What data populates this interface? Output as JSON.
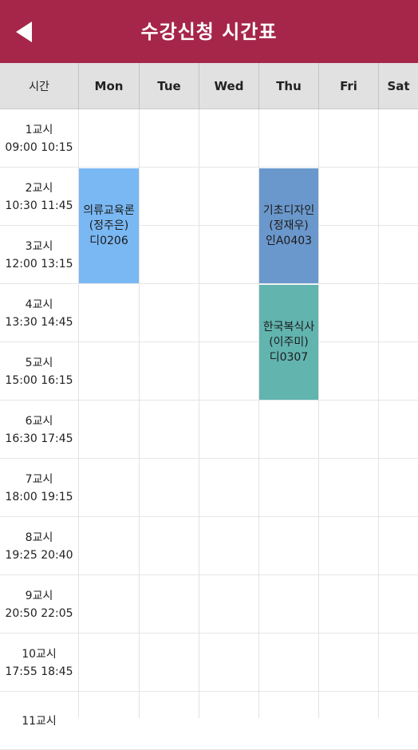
{
  "header": {
    "title": "수강신청 시간표",
    "time_col": "시간",
    "days": [
      "Mon",
      "Tue",
      "Wed",
      "Thu",
      "Fri",
      "Sat"
    ]
  },
  "periods": [
    {
      "label": "1교시",
      "time": "09:00 10:15"
    },
    {
      "label": "2교시",
      "time": "10:30 11:45"
    },
    {
      "label": "3교시",
      "time": "12:00 13:15"
    },
    {
      "label": "4교시",
      "time": "13:30 14:45"
    },
    {
      "label": "5교시",
      "time": "15:00 16:15"
    },
    {
      "label": "6교시",
      "time": "16:30 17:45"
    },
    {
      "label": "7교시",
      "time": "18:00 19:15"
    },
    {
      "label": "8교시",
      "time": "19:25 20:40"
    },
    {
      "label": "9교시",
      "time": "20:50 22:05"
    },
    {
      "label": "10교시",
      "time": "17:55 18:45"
    },
    {
      "label": "11교시",
      "time": ""
    }
  ],
  "courses": [
    {
      "name": "의류교육론",
      "prof": "(정주은)",
      "room": "디0206",
      "day": 0,
      "start": 1,
      "span": 2,
      "color": "#7ab8f3"
    },
    {
      "name": "기초디자인",
      "prof": "(정재우)",
      "room": "인A0403",
      "day": 3,
      "start": 1,
      "span": 2,
      "color": "#6b98cc"
    },
    {
      "name": "한국복식사",
      "prof": "(이주미)",
      "room": "디0307",
      "day": 3,
      "start": 3,
      "span": 2,
      "color": "#62b4af"
    }
  ]
}
